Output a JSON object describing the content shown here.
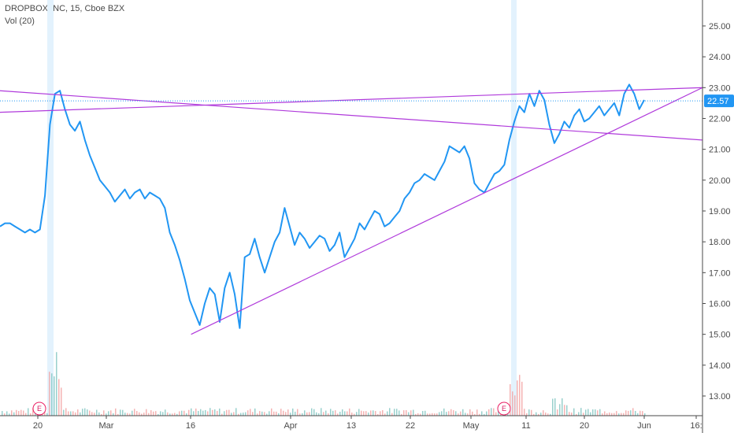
{
  "legend": {
    "title": "DROPBOX INC, 15, Cboe BZX",
    "volume": "Vol (20)"
  },
  "price_tag": "22.57",
  "earnings_label": "E",
  "colors": {
    "price_line": "#2196f3",
    "trend_line": "#b03adb",
    "last_price": "#2196f3",
    "earnings": "#e91e63",
    "vol_up": "#7fc4c0",
    "vol_down": "#f2a0a0",
    "highlight": "#e3f2fd"
  },
  "chart_data": {
    "type": "line",
    "title": "DROPBOX INC, 15, Cboe BZX",
    "xlabel": "",
    "ylabel": "",
    "ylim": [
      12.0,
      26.0
    ],
    "y_ticks": [
      "25.00",
      "24.00",
      "23.00",
      "22.00",
      "21.00",
      "20.00",
      "19.00",
      "18.00",
      "17.00",
      "16.00",
      "15.00",
      "14.00",
      "13.00"
    ],
    "x_ticks": [
      "20",
      "Mar",
      "16",
      "Apr",
      "13",
      "22",
      "May",
      "11",
      "20",
      "Jun",
      "16:"
    ],
    "grid": false,
    "last_price": 22.57,
    "earnings_markers": [
      "20-21",
      "May 7"
    ],
    "series": [
      {
        "values": [
          18.5,
          18.6,
          18.6,
          18.5,
          18.4,
          18.3,
          18.4,
          18.3,
          18.4,
          19.5,
          21.8,
          22.8,
          22.9,
          22.3,
          21.8,
          21.6,
          21.9,
          21.3,
          20.8,
          20.4,
          20.0,
          19.8,
          19.6,
          19.3,
          19.5,
          19.7,
          19.4,
          19.6,
          19.7,
          19.4,
          19.6,
          19.5,
          19.4,
          19.1,
          18.3,
          17.9,
          17.4,
          16.8,
          16.1,
          15.7,
          15.3,
          16.0,
          16.5,
          16.3,
          15.4,
          16.5,
          17.0,
          16.3,
          15.2,
          17.5,
          17.6,
          18.1,
          17.5,
          17.0,
          17.5,
          18.0,
          18.3,
          19.1,
          18.5,
          17.9,
          18.3,
          18.1,
          17.8,
          18.0,
          18.2,
          18.1,
          17.7,
          17.9,
          18.3,
          17.5,
          17.8,
          18.1,
          18.6,
          18.4,
          18.7,
          19.0,
          18.9,
          18.5,
          18.6,
          18.8,
          19.0,
          19.4,
          19.6,
          19.9,
          20.0,
          20.2,
          20.1,
          20.0,
          20.3,
          20.6,
          21.1,
          21.0,
          20.9,
          21.1,
          20.7,
          19.9,
          19.7,
          19.6,
          19.9,
          20.2,
          20.3,
          20.5,
          21.3,
          21.9,
          22.4,
          22.2,
          22.8,
          22.4,
          22.9,
          22.6,
          21.8,
          21.2,
          21.5,
          21.9,
          21.7,
          22.1,
          22.3,
          21.9,
          22.0,
          22.2,
          22.4,
          22.1,
          22.3,
          22.5,
          22.1,
          22.8,
          23.1,
          22.8,
          22.3,
          22.6
        ]
      }
    ],
    "trendlines": [
      {
        "from": [
          0.0,
          22.9
        ],
        "to": [
          1.0,
          21.3
        ]
      },
      {
        "from": [
          0.0,
          22.2
        ],
        "to": [
          1.0,
          23.0
        ]
      },
      {
        "from": [
          0.272,
          15.0
        ],
        "to": [
          1.0,
          23.0
        ]
      }
    ]
  }
}
